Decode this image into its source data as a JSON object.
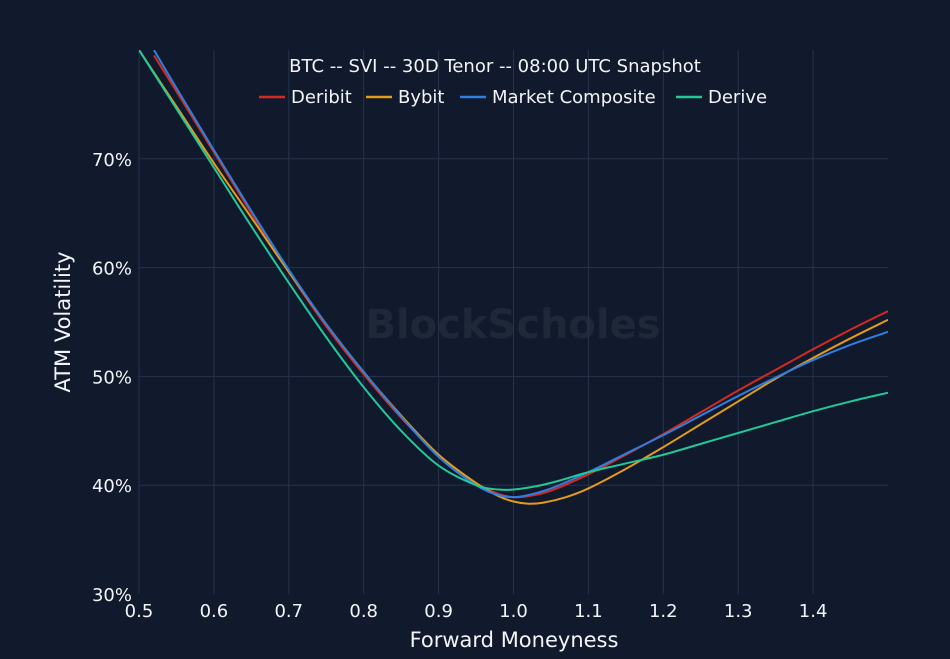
{
  "chart_data": {
    "type": "line",
    "title": "BTC -- SVI -- 30D Tenor -- 08:00 UTC Snapshot",
    "xlabel": "Forward Moneyness",
    "ylabel": "ATM Volatility",
    "xlim": [
      0.5,
      1.5
    ],
    "ylim": [
      30,
      80
    ],
    "x_ticks": [
      0.5,
      0.6,
      0.7,
      0.8,
      0.9,
      1.0,
      1.1,
      1.2,
      1.3,
      1.4
    ],
    "x_tick_labels": [
      "0.5",
      "0.6",
      "0.7",
      "0.8",
      "0.9",
      "1.0",
      "1.1",
      "1.2",
      "1.3",
      "1.4"
    ],
    "y_ticks": [
      30,
      40,
      50,
      60,
      70
    ],
    "y_tick_labels": [
      "30%",
      "40%",
      "50%",
      "60%",
      "70%"
    ],
    "grid": true,
    "legend_position": "top",
    "watermark": "BlockScholes",
    "series": [
      {
        "name": "Deribit",
        "color": "#d42a1f",
        "x": [
          0.52,
          0.55,
          0.6,
          0.65,
          0.7,
          0.75,
          0.8,
          0.85,
          0.9,
          0.95,
          0.98,
          1.0,
          1.02,
          1.05,
          1.1,
          1.15,
          1.2,
          1.25,
          1.3,
          1.35,
          1.4,
          1.45,
          1.5
        ],
        "y": [
          79.5,
          76.2,
          70.6,
          65.0,
          59.6,
          54.6,
          50.2,
          46.2,
          42.8,
          40.2,
          39.2,
          38.9,
          39.0,
          39.5,
          41.0,
          42.8,
          44.7,
          46.7,
          48.7,
          50.6,
          52.5,
          54.3,
          56.0
        ]
      },
      {
        "name": "Bybit",
        "color": "#e39b1a",
        "x": [
          0.5,
          0.55,
          0.6,
          0.65,
          0.7,
          0.75,
          0.8,
          0.85,
          0.9,
          0.95,
          0.98,
          1.0,
          1.02,
          1.04,
          1.07,
          1.1,
          1.15,
          1.2,
          1.25,
          1.3,
          1.35,
          1.4,
          1.45,
          1.5
        ],
        "y": [
          80.0,
          74.8,
          69.6,
          64.6,
          59.6,
          54.8,
          50.4,
          46.4,
          42.8,
          40.2,
          39.0,
          38.5,
          38.3,
          38.4,
          38.9,
          39.7,
          41.5,
          43.5,
          45.6,
          47.7,
          49.8,
          51.7,
          53.5,
          55.2
        ]
      },
      {
        "name": "Market Composite",
        "color": "#2f7fe0",
        "x": [
          0.52,
          0.55,
          0.6,
          0.65,
          0.7,
          0.75,
          0.8,
          0.85,
          0.9,
          0.95,
          0.98,
          1.0,
          1.02,
          1.05,
          1.1,
          1.15,
          1.2,
          1.25,
          1.3,
          1.35,
          1.4,
          1.45,
          1.5
        ],
        "y": [
          80.0,
          76.5,
          70.8,
          65.2,
          59.8,
          54.8,
          50.4,
          46.3,
          42.6,
          40.0,
          39.1,
          38.9,
          39.1,
          39.7,
          41.2,
          42.9,
          44.6,
          46.4,
          48.2,
          49.9,
          51.5,
          52.9,
          54.1
        ]
      },
      {
        "name": "Derive",
        "color": "#22c79a",
        "x": [
          0.5,
          0.55,
          0.6,
          0.65,
          0.7,
          0.75,
          0.8,
          0.85,
          0.9,
          0.95,
          0.98,
          1.0,
          1.03,
          1.06,
          1.1,
          1.15,
          1.2,
          1.25,
          1.3,
          1.35,
          1.4,
          1.45,
          1.5
        ],
        "y": [
          80.0,
          74.6,
          69.2,
          63.8,
          58.6,
          53.6,
          49.0,
          45.0,
          41.8,
          40.0,
          39.6,
          39.6,
          39.9,
          40.4,
          41.2,
          42.0,
          42.8,
          43.8,
          44.8,
          45.8,
          46.8,
          47.7,
          48.5
        ]
      }
    ]
  }
}
